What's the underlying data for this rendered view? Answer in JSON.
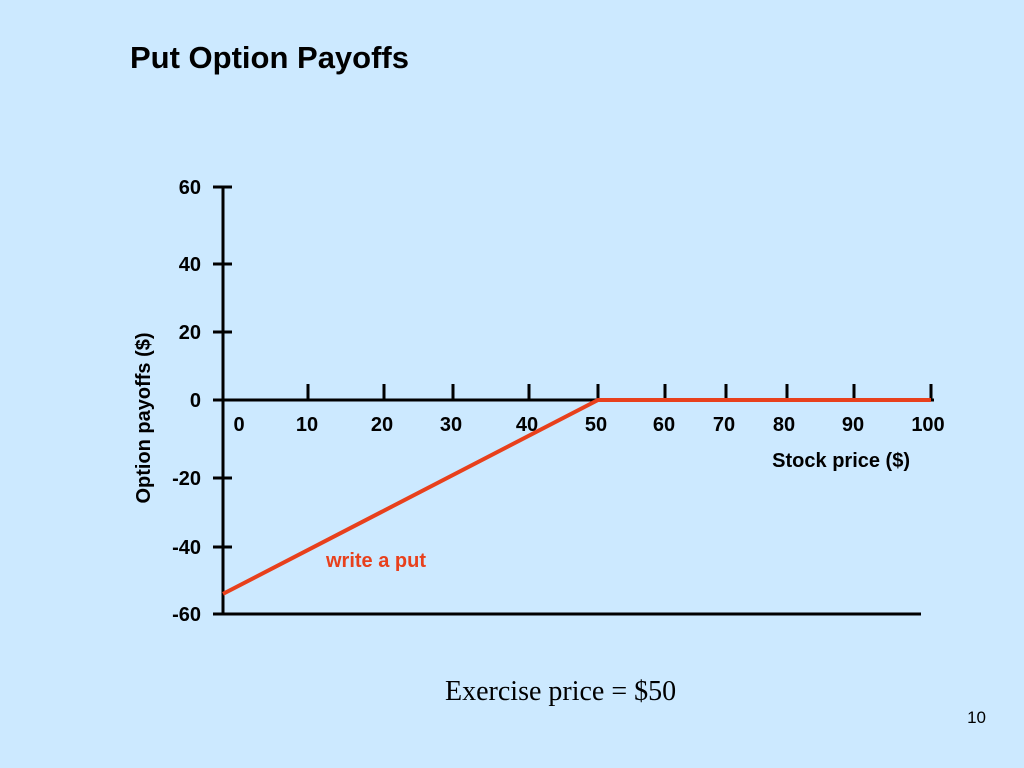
{
  "slide": {
    "title": "Put Option Payoffs",
    "footer_note": "Exercise price = $50",
    "page_number": "10",
    "background_color": "#cce9ff"
  },
  "chart_data": {
    "type": "line",
    "title": "Put Option Payoffs",
    "xlabel": "Stock price ($)",
    "ylabel": "Option payoffs ($)",
    "x_ticks": [
      "0",
      "10",
      "20",
      "30",
      "40",
      "50",
      "60",
      "70",
      "80",
      "90",
      "100"
    ],
    "y_ticks": [
      "60",
      "40",
      "20",
      "0",
      "-20",
      "-40",
      "-60"
    ],
    "xlim": [
      0,
      100
    ],
    "ylim": [
      -60,
      60
    ],
    "grid": false,
    "series": [
      {
        "color": "#e8401c",
        "x": [
          0,
          50,
          100
        ],
        "y": [
          -54,
          0,
          0
        ]
      }
    ],
    "annotations": [
      {
        "text": "write a put",
        "color": "#e8401c"
      }
    ]
  }
}
